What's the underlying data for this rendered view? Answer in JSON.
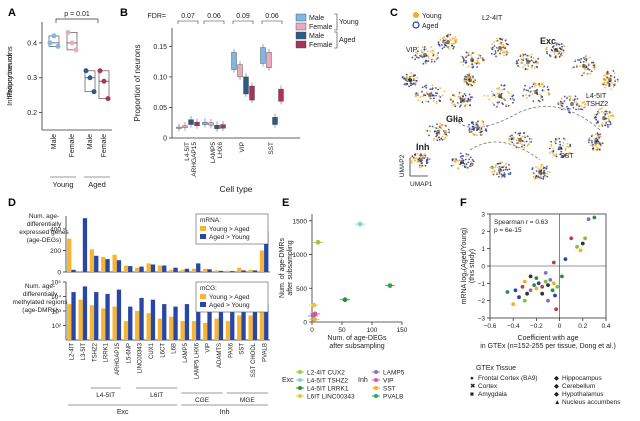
{
  "figure": {
    "panel_labels": [
      "A",
      "B",
      "C",
      "D",
      "E",
      "F"
    ]
  },
  "colors": {
    "young_male": "#7eb6e6",
    "young_female": "#eba9bf",
    "aged_male": "#2e5a8a",
    "aged_female": "#a8345c",
    "young_point": "#f5ad26",
    "aged_point": "#1f3a99",
    "young_bar": "#f7b533",
    "aged_bar": "#2746a6",
    "spearman_young": "#f5ad26",
    "spearman_aged": "#1f3a99"
  },
  "chart_data": [
    {
      "panel": "A",
      "type": "scatter",
      "ylabel": "Proportion of\nInhibitory neurons",
      "yticks": [
        "0.2",
        "0.3",
        "0.4"
      ],
      "ylim": [
        0.15,
        0.46
      ],
      "x_labels": [
        "Male",
        "Female",
        "Male",
        "Female"
      ],
      "group_labels": [
        "Young",
        "Aged"
      ],
      "annotation": "p = 0.01",
      "groups": [
        {
          "sex": "Male",
          "age": "Young",
          "points": [
            0.4,
            0.42,
            0.39
          ],
          "box": [
            0.39,
            0.4,
            0.42
          ]
        },
        {
          "sex": "Female",
          "age": "Young",
          "points": [
            0.43,
            0.4,
            0.38
          ],
          "box": [
            0.38,
            0.4,
            0.43
          ]
        },
        {
          "sex": "Male",
          "age": "Aged",
          "points": [
            0.32,
            0.3,
            0.26
          ],
          "box": [
            0.26,
            0.3,
            0.32
          ]
        },
        {
          "sex": "Female",
          "age": "Aged",
          "points": [
            0.32,
            0.29,
            0.24
          ],
          "box": [
            0.24,
            0.29,
            0.32
          ]
        }
      ]
    },
    {
      "panel": "B",
      "type": "box",
      "xlabel": "Cell type",
      "ylabel": "Proportion of neurons",
      "yticks": [
        "0",
        "0.05",
        "0.10",
        "0.15"
      ],
      "ylim": [
        0,
        0.18
      ],
      "fdr_label": "FDR=",
      "fdr_values": [
        "0.07",
        "0.06",
        "0.09",
        "0.06"
      ],
      "categories": [
        "L4-5IT\nARHGAP15",
        "LAMP5\nLHX6",
        "VIP",
        "SST"
      ],
      "legend": {
        "entries": [
          "Male",
          "Female",
          "Male",
          "Female"
        ],
        "group_labels": [
          "Young",
          "Aged"
        ]
      },
      "series": [
        {
          "name": "Male",
          "age": "Young",
          "boxes": [
            [
              0.016,
              0.017,
              0.018
            ],
            [
              0.022,
              0.024,
              0.026
            ],
            [
              0.112,
              0.125,
              0.14
            ],
            [
              0.122,
              0.135,
              0.148
            ]
          ]
        },
        {
          "name": "Female",
          "age": "Young",
          "boxes": [
            [
              0.017,
              0.019,
              0.02
            ],
            [
              0.021,
              0.023,
              0.025
            ],
            [
              0.1,
              0.112,
              0.12
            ],
            [
              0.115,
              0.128,
              0.14
            ]
          ]
        },
        {
          "name": "Male",
          "age": "Aged",
          "boxes": [
            [
              0.022,
              0.026,
              0.03
            ],
            [
              0.015,
              0.018,
              0.021
            ],
            [
              0.072,
              0.085,
              0.1
            ],
            [
              0.022,
              0.028,
              0.034
            ]
          ]
        },
        {
          "name": "Female",
          "age": "Aged",
          "boxes": [
            [
              0.02,
              0.023,
              0.026
            ],
            [
              0.016,
              0.019,
              0.022
            ],
            [
              0.062,
              0.074,
              0.085
            ],
            [
              0.06,
              0.07,
              0.08
            ]
          ]
        }
      ]
    },
    {
      "panel": "C",
      "type": "scatter",
      "xlabel": "UMAP1",
      "ylabel": "UMAP2",
      "legend": [
        "Young",
        "Aged"
      ],
      "labels": [
        "L2-4IT",
        "Exc",
        "VIP",
        "L4-5IT\nTSHZ2",
        "Glia",
        "Inh",
        "SST"
      ]
    },
    {
      "panel": "D",
      "type": "bar",
      "categories": [
        "L2-4IT",
        "L3-5IT",
        "TSHZ2",
        "LRRK1",
        "ARHGAP15",
        "L5-6NP",
        "LINC00343",
        "CUX1",
        "L6CT",
        "L6B",
        "LAMP5",
        "LAMP5 LHX6",
        "VIP",
        "ADAMTS",
        "PAX6",
        "SST",
        "SST CHODL",
        "PVALB"
      ],
      "group_labels": [
        "L4-5IT",
        "L6IT",
        "CGE",
        "MGE",
        "Exc",
        "Inh"
      ],
      "top": {
        "ylabel": "Num. age-\ndifferentially\nexpressed genes\n(age-DEGs)",
        "yticks": [
          "0",
          "200",
          "400"
        ],
        "ylim": [
          0,
          520
        ],
        "legend_title": "mRNA:",
        "legend": [
          "Young > Aged",
          "Aged > Young"
        ],
        "series": [
          {
            "name": "Young > Aged",
            "values": [
              310,
              10,
              210,
              140,
              160,
              60,
              40,
              80,
              60,
              20,
              20,
              30,
              30,
              15,
              12,
              40,
              20,
              200
            ]
          },
          {
            "name": "Aged > Young",
            "values": [
              20,
              500,
              150,
              120,
              110,
              55,
              50,
              70,
              60,
              40,
              30,
              80,
              25,
              10,
              8,
              15,
              15,
              380
            ]
          }
        ]
      },
      "bottom": {
        "ylabel": "Num. age-\ndifferentially\nmethylated regions\n(age-DMRs)",
        "yticks": [
          "10²",
          "10³",
          "10⁴",
          "10⁵"
        ],
        "ylim": [
          10,
          100000
        ],
        "scale": "log",
        "legend_title": "mCG:",
        "legend": [
          "Young > Aged",
          "Aged > Young"
        ],
        "series": [
          {
            "name": "Young > Aged",
            "values": [
              3000,
              6000,
              2500,
              1500,
              2000,
              200,
              1000,
              700,
              300,
              400,
              200,
              200,
              150,
              300,
              200,
              500,
              500,
              1500
            ]
          },
          {
            "name": "Aged > Young",
            "values": [
              20000,
              50000,
              20000,
              15000,
              30000,
              2000,
              8000,
              6000,
              3000,
              2000,
              3000,
              3000,
              2000,
              2500,
              1500,
              4000,
              8000,
              3000
            ]
          }
        ]
      }
    },
    {
      "panel": "E",
      "type": "scatter",
      "xlabel": "Num. of age-DEGs\nafter subsampling",
      "ylabel": "Num. of age-DMRs\nafter subsampling",
      "xticks": [
        "0",
        "50",
        "100",
        "150"
      ],
      "yticks": [
        "0",
        "500",
        "1000",
        "1500"
      ],
      "xlim": [
        0,
        150
      ],
      "ylim": [
        0,
        1600
      ],
      "points": [
        {
          "name": "L2-4IT CUX2",
          "x": 10,
          "y": 1180
        },
        {
          "name": "L4-5IT TSHZ2",
          "x": 80,
          "y": 1450
        },
        {
          "name": "L4-5IT LRRK1",
          "x": 55,
          "y": 330
        },
        {
          "name": "L6IT LINC00343",
          "x": 3,
          "y": 250
        },
        {
          "name": "LAMP5",
          "x": 2,
          "y": 90
        },
        {
          "name": "VIP",
          "x": 5,
          "y": 120
        },
        {
          "name": "SST",
          "x": 4,
          "y": 40
        },
        {
          "name": "PVALB",
          "x": 130,
          "y": 540
        }
      ],
      "legend_groups": [
        {
          "label": "Exc",
          "entries": [
            "L2-4IT CUX2",
            "L4-5IT TSHZ2",
            "L4-5IT LRRK1",
            "L6IT LINC00343"
          ]
        },
        {
          "label": "Inh",
          "entries": [
            "LAMP5",
            "VIP",
            "SST",
            "PVALB"
          ]
        }
      ],
      "legend_colors": [
        "#9acb3a",
        "#7fd6cf",
        "#2a8f3a",
        "#f0c43a",
        "#8a6fc0",
        "#e0529a",
        "#f5ad26",
        "#2aa84a"
      ]
    },
    {
      "panel": "F",
      "type": "scatter",
      "xlabel": "Coefficient with age\nin GTEx (n=152-255 per tissue, Dong et al.)",
      "ylabel": "mRNA log₂(Aged/Young)\n(this study)",
      "xticks": [
        "−0.6",
        "−0.4",
        "−0.2",
        "0",
        "0.2",
        "0.4"
      ],
      "yticks": [
        "−3",
        "−2",
        "−1",
        "0",
        "1",
        "2",
        "3"
      ],
      "xlim": [
        -0.6,
        0.4
      ],
      "ylim": [
        -3,
        3
      ],
      "annotation": [
        "Spearman r = 0.63",
        "p = 6e-15"
      ],
      "legend_title": "GTEx Tissue",
      "legend": [
        "Frontal Cortex (BA9)",
        "Cortex",
        "Amygdala",
        "Hippocampus",
        "Cerebellum",
        "Hypothalamus",
        "Nucleus accumbens"
      ],
      "points": [
        {
          "x": -0.45,
          "y": -1.5
        },
        {
          "x": -0.4,
          "y": -2.2
        },
        {
          "x": -0.35,
          "y": -1.8
        },
        {
          "x": -0.32,
          "y": -1.2
        },
        {
          "x": -0.3,
          "y": -2.0
        },
        {
          "x": -0.28,
          "y": -1.6
        },
        {
          "x": -0.25,
          "y": -1.4
        },
        {
          "x": -0.22,
          "y": -1.1
        },
        {
          "x": -0.2,
          "y": -1.3
        },
        {
          "x": -0.18,
          "y": -1.0
        },
        {
          "x": -0.15,
          "y": -1.2
        },
        {
          "x": -0.12,
          "y": -0.9
        },
        {
          "x": -0.1,
          "y": -1.1
        },
        {
          "x": -0.08,
          "y": -0.8
        },
        {
          "x": -0.06,
          "y": -1.4
        },
        {
          "x": -0.05,
          "y": -1.0
        },
        {
          "x": -0.04,
          "y": -1.7
        },
        {
          "x": -0.03,
          "y": -2.5
        },
        {
          "x": -0.02,
          "y": -1.2
        },
        {
          "x": -0.15,
          "y": -1.6
        },
        {
          "x": -0.1,
          "y": -2.0
        },
        {
          "x": -0.2,
          "y": -0.7
        },
        {
          "x": -0.3,
          "y": -0.9
        },
        {
          "x": -0.38,
          "y": -1.4
        },
        {
          "x": 0.1,
          "y": 1.6
        },
        {
          "x": 0.15,
          "y": 1.1
        },
        {
          "x": 0.2,
          "y": 1.3
        },
        {
          "x": 0.25,
          "y": 2.7
        },
        {
          "x": 0.3,
          "y": 2.8
        },
        {
          "x": 0.18,
          "y": 0.9
        },
        {
          "x": 0.05,
          "y": 0.4
        },
        {
          "x": -0.05,
          "y": 0.2
        },
        {
          "x": 0.22,
          "y": 1.6
        },
        {
          "x": -0.25,
          "y": -0.6
        },
        {
          "x": -0.12,
          "y": -0.4
        },
        {
          "x": 0.02,
          "y": -0.6
        }
      ]
    }
  ]
}
